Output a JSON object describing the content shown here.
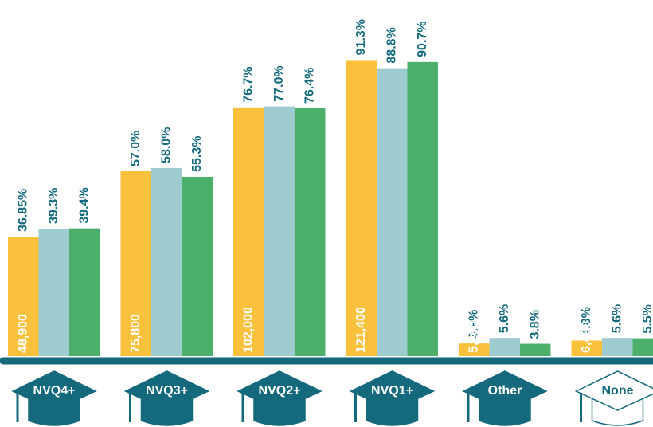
{
  "chart_data": {
    "type": "bar",
    "categories": [
      "NVQ4+",
      "NVQ3+",
      "NVQ2+",
      "NVQ1+",
      "Other",
      "None"
    ],
    "ylim": [
      0,
      100
    ],
    "series": [
      {
        "color": "#f9c13c",
        "values": [
          36.85,
          57.0,
          76.7,
          91.3,
          3.9,
          4.8
        ],
        "value_labels": [
          "36.85%",
          "57.0%",
          "76.7%",
          "91.3%",
          "3.9%",
          "4.8%"
        ]
      },
      {
        "color": "#9ecbd0",
        "values": [
          39.3,
          58.0,
          77.0,
          88.8,
          5.6,
          5.6
        ],
        "value_labels": [
          "39.3%",
          "58.0%",
          "77.0%",
          "88.8%",
          "5.6%",
          "5.6%"
        ]
      },
      {
        "color": "#4caf6a",
        "values": [
          39.4,
          55.3,
          76.4,
          90.7,
          3.8,
          5.5
        ],
        "value_labels": [
          "39.4%",
          "55.3%",
          "76.4%",
          "90.7%",
          "3.8%",
          "5.5%"
        ]
      }
    ],
    "count_labels": [
      "48,900",
      "75,800",
      "102,000",
      "121,400",
      "5,200",
      "6,400"
    ],
    "hat_colors": [
      "#14697d",
      "#14697d",
      "#14697d",
      "#14697d",
      "#14697d",
      "#ffffff"
    ]
  }
}
